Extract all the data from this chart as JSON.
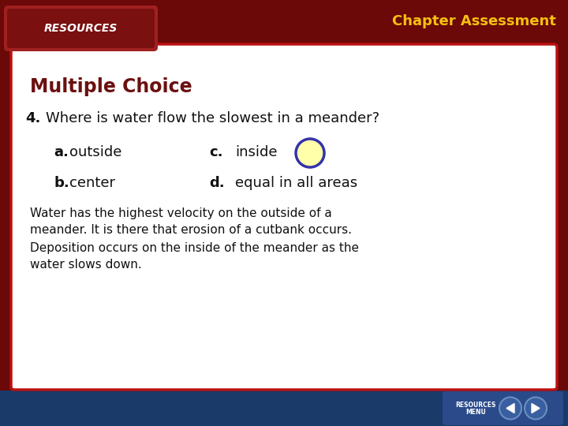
{
  "bg_dark_red": "#6B0808",
  "bg_navy": "#1A3A6A",
  "bg_white": "#FFFFFF",
  "header_yellow": "#F5C010",
  "header_title": "Chapter Assessment",
  "resources_label": "RESOURCES",
  "tab_bg_light": "#A02020",
  "tab_bg_dark": "#7A1010",
  "section_title": "Multiple Choice",
  "section_title_color": "#6B1010",
  "question_number": "4.",
  "question_text": "Where is water flow the slowest in a meander?",
  "question_color": "#111111",
  "choice_color": "#111111",
  "circle_fill": "#FFFFAA",
  "circle_edge": "#3333AA",
  "explanation_line1": "Water has the highest velocity on the outside of a",
  "explanation_line2": "meander. It is there that erosion of a cutbank occurs.",
  "explanation_line3": "Deposition occurs on the inside of the meander as the",
  "explanation_line4": "water slows down.",
  "explanation_color": "#111111",
  "nav_bg": "#2A4A8A",
  "content_border_color": "#BB1111"
}
